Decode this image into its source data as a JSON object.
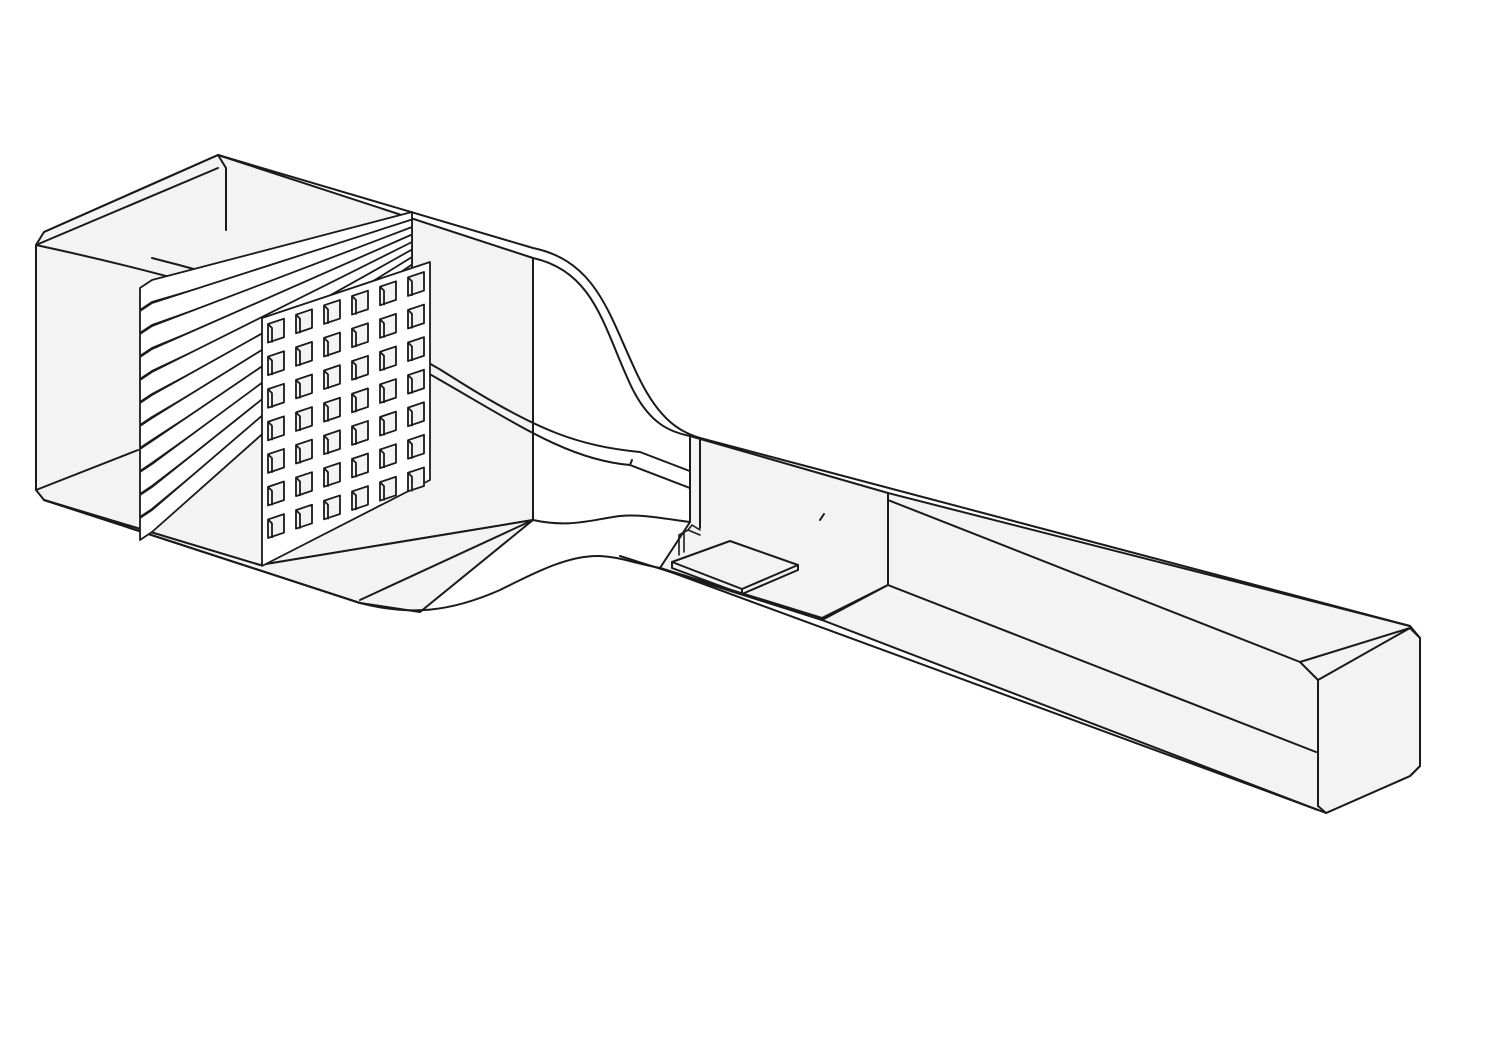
{
  "diagram": {
    "subject": "wind-tunnel",
    "components": [
      "settling-chamber",
      "flow-conditioning-grid",
      "contraction",
      "test-section",
      "flat-plate-model",
      "probe",
      "diffuser"
    ],
    "labels": []
  },
  "style": {
    "background": "#ffffff",
    "fill": "#f3f3f3",
    "stroke": "#1a1a1a"
  },
  "grid": {
    "columns": 6,
    "rows": 7,
    "slats": 11
  }
}
